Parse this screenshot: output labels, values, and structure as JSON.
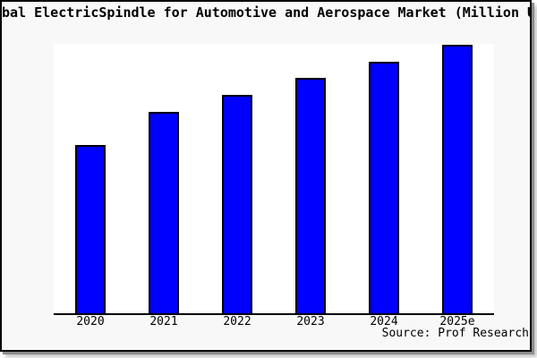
{
  "chart": {
    "title_visible": "bal ElectricSpindle for Automotive and Aerospace Market (Million US",
    "source": "Source: Prof Research"
  },
  "chart_data": {
    "type": "bar",
    "title": "bal ElectricSpindle for Automotive and Aerospace Market (Million US",
    "categories": [
      "2020",
      "2021",
      "2022",
      "2023",
      "2024",
      "2025e"
    ],
    "values": [
      62.8,
      75.2,
      81.4,
      87.8,
      93.7,
      100
    ],
    "xlabel": "",
    "ylabel": "",
    "ylim": [
      0,
      100.5
    ],
    "grid": false,
    "legend": false,
    "y_axis_labels_visible": false,
    "values_are_relative_index_max_100": true,
    "bar_color": "#0000ff",
    "bar_border_color": "#000000",
    "plot_background": "#ffffff",
    "figure_background": "#f8f8f8",
    "frame_border_color": "#000000",
    "shadow_color": "#8c8c8c",
    "source_label": "Source: Prof Research"
  }
}
